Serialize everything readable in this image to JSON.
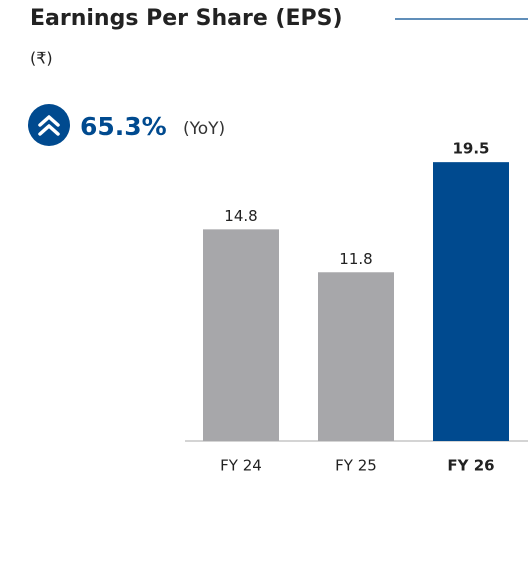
{
  "chart_data": {
    "type": "bar",
    "title": "Earnings Per Share (EPS)",
    "subtitle": "(₹)",
    "annotation": {
      "value": 65.3,
      "label": "65.3%",
      "note": "(YoY)"
    },
    "categories": [
      "FY 24",
      "FY 25",
      "FY 26"
    ],
    "values": [
      14.8,
      11.8,
      19.5
    ],
    "colors": [
      "#a7a7aa",
      "#a7a7aa",
      "#004a8f"
    ],
    "highlight_color": "#004a8f"
  }
}
